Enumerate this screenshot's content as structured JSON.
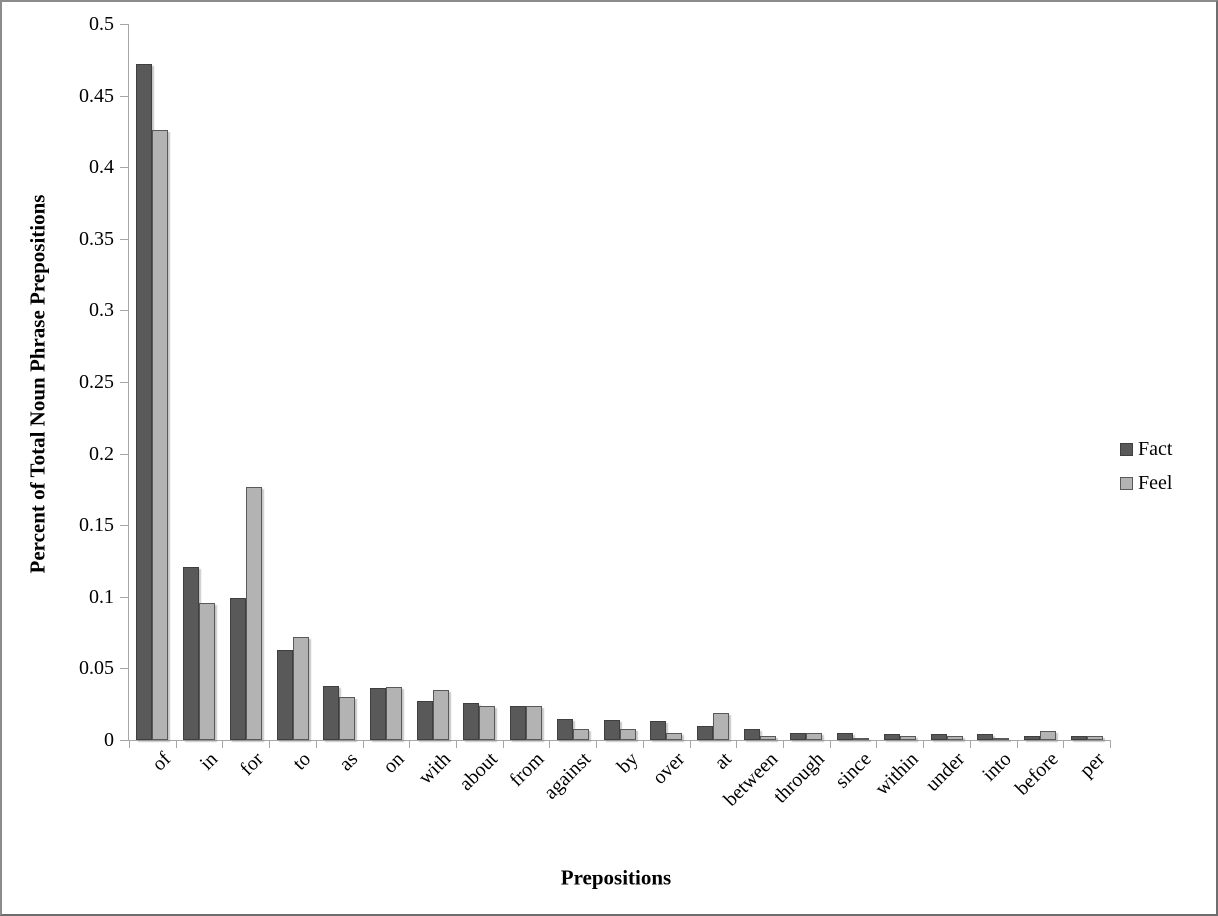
{
  "chart_data": {
    "type": "bar",
    "title": "",
    "xlabel": "Prepositions",
    "ylabel": "Percent of Total Noun Phrase Prepositions",
    "categories": [
      "of",
      "in",
      "for",
      "to",
      "as",
      "on",
      "with",
      "about",
      "from",
      "against",
      "by",
      "over",
      "at",
      "between",
      "through",
      "since",
      "within",
      "under",
      "into",
      "before",
      "per"
    ],
    "series": [
      {
        "name": "Fact",
        "color": "#595959",
        "border_color": "#3f3f3f",
        "values": [
          0.472,
          0.121,
          0.099,
          0.063,
          0.038,
          0.036,
          0.027,
          0.026,
          0.024,
          0.015,
          0.014,
          0.013,
          0.01,
          0.008,
          0.005,
          0.005,
          0.004,
          0.004,
          0.004,
          0.003,
          0.003
        ]
      },
      {
        "name": "Feel",
        "color": "#b3b3b3",
        "border_color": "#595959",
        "values": [
          0.426,
          0.096,
          0.177,
          0.072,
          0.03,
          0.037,
          0.035,
          0.024,
          0.024,
          0.008,
          0.008,
          0.005,
          0.019,
          0.003,
          0.005,
          0.001,
          0.003,
          0.003,
          0.001,
          0.006,
          0.003
        ]
      }
    ],
    "ylim": [
      0,
      0.5
    ],
    "ytick_step": 0.05,
    "ytick_labels": [
      "0",
      "0.05",
      "0.1",
      "0.15",
      "0.2",
      "0.25",
      "0.3",
      "0.35",
      "0.4",
      "0.45",
      "0.5"
    ],
    "grid": false,
    "legend_position": "right",
    "axis_color": "#a6a6a6",
    "background_color": "#ffffff"
  }
}
